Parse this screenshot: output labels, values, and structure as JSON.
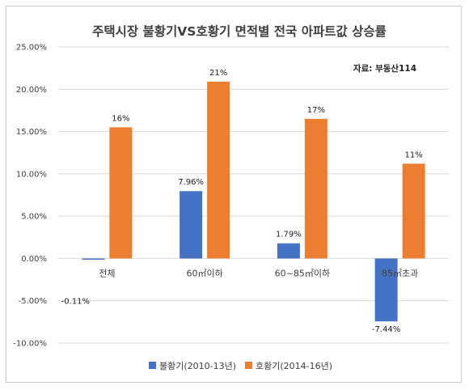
{
  "chart_data": {
    "type": "bar",
    "title": "주택시장 불황기VS호황기 면적별 전국 아파트값 상승률",
    "source_note": "자료: 부동산114",
    "categories": [
      "전체",
      "60㎡이하",
      "60~85㎡이하",
      "85㎡초과"
    ],
    "series": [
      {
        "name": "불황기(2010-13년)",
        "color": "#4472c4",
        "values": [
          -0.11,
          7.96,
          1.79,
          -7.44
        ],
        "labels": [
          "-0.11%",
          "7.96%",
          "1.79%",
          "-7.44%"
        ]
      },
      {
        "name": "호황기(2014-16년)",
        "color": "#ed7d31",
        "values": [
          15.5,
          20.9,
          16.5,
          11.2
        ],
        "labels": [
          "16%",
          "21%",
          "17%",
          "11%"
        ]
      }
    ],
    "y_ticks": [
      25,
      20,
      15,
      10,
      5,
      0,
      -5,
      -10
    ],
    "y_tick_labels": [
      "25.00%",
      "20.00%",
      "15.00%",
      "10.00%",
      "5.00%",
      "0.00%",
      "-5.00%",
      "-10.00%"
    ],
    "ylim": [
      -10,
      25
    ],
    "grid": true,
    "legend": "bottom"
  }
}
